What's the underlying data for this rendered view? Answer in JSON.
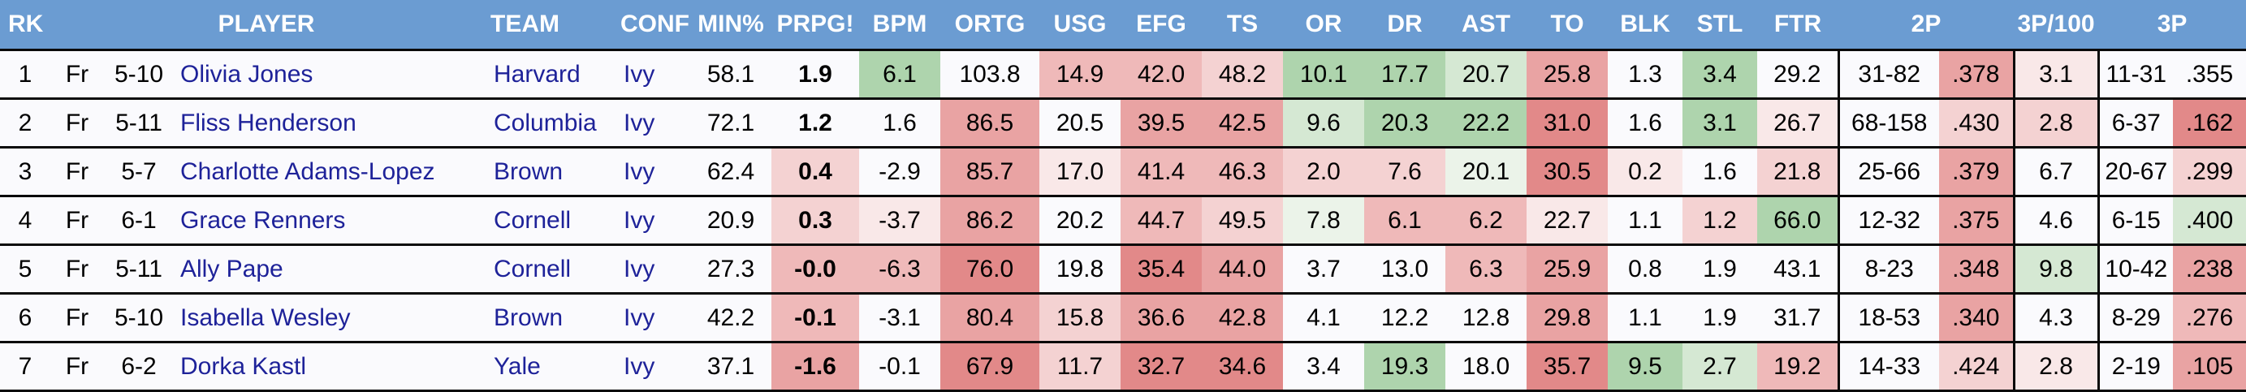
{
  "table": {
    "header": [
      {
        "label": "RK"
      },
      {
        "label": "PLAYER"
      },
      {
        "label": "TEAM"
      },
      {
        "label": "CONF"
      },
      {
        "label": "MIN%"
      },
      {
        "label": "PRPG!"
      },
      {
        "label": "BPM"
      },
      {
        "label": "ORTG"
      },
      {
        "label": "USG"
      },
      {
        "label": "EFG"
      },
      {
        "label": "TS"
      },
      {
        "label": "OR"
      },
      {
        "label": "DR"
      },
      {
        "label": "AST"
      },
      {
        "label": "TO"
      },
      {
        "label": "BLK"
      },
      {
        "label": "STL"
      },
      {
        "label": "FTR"
      },
      {
        "label": "2P"
      },
      {
        "label": "3P/100"
      },
      {
        "label": "3P"
      }
    ],
    "col_names": [
      "cell-rank",
      "cell-class-year",
      "cell-height",
      "cell-player-name",
      "cell-team",
      "cell-conf",
      "cell-min-pct",
      "cell-prpg",
      "cell-bpm",
      "cell-ortg",
      "cell-usg",
      "cell-efg",
      "cell-ts",
      "cell-or",
      "cell-dr",
      "cell-ast",
      "cell-to",
      "cell-blk",
      "cell-stl",
      "cell-ftr",
      "cell-2p-record",
      "cell-2p-pct",
      "cell-3p-per-100",
      "cell-3p-record",
      "cell-3p-pct"
    ],
    "rows": [
      {
        "cells": [
          {
            "v": "1"
          },
          {
            "v": "Fr"
          },
          {
            "v": "5-10"
          },
          {
            "v": "Olivia Jones"
          },
          {
            "v": "Harvard"
          },
          {
            "v": "Ivy"
          },
          {
            "v": "58.1"
          },
          {
            "v": "1.9"
          },
          {
            "v": "6.1",
            "c": "g2"
          },
          {
            "v": "103.8"
          },
          {
            "v": "14.9",
            "c": "r2"
          },
          {
            "v": "42.0",
            "c": "r2"
          },
          {
            "v": "48.2",
            "c": "r1"
          },
          {
            "v": "10.1",
            "c": "g2"
          },
          {
            "v": "17.7",
            "c": "g2"
          },
          {
            "v": "20.7",
            "c": "g1"
          },
          {
            "v": "25.8",
            "c": "r3"
          },
          {
            "v": "1.3"
          },
          {
            "v": "3.4",
            "c": "g2"
          },
          {
            "v": "29.2"
          },
          {
            "v": "31-82"
          },
          {
            "v": ".378",
            "c": "r3"
          },
          {
            "v": "3.1",
            "c": "r0"
          },
          {
            "v": "11-31"
          },
          {
            "v": ".355"
          }
        ]
      },
      {
        "cells": [
          {
            "v": "2"
          },
          {
            "v": "Fr"
          },
          {
            "v": "5-11"
          },
          {
            "v": "Fliss Henderson"
          },
          {
            "v": "Columbia"
          },
          {
            "v": "Ivy"
          },
          {
            "v": "72.1"
          },
          {
            "v": "1.2"
          },
          {
            "v": "1.6"
          },
          {
            "v": "86.5",
            "c": "r3"
          },
          {
            "v": "20.5"
          },
          {
            "v": "39.5",
            "c": "r3"
          },
          {
            "v": "42.5",
            "c": "r3"
          },
          {
            "v": "9.6",
            "c": "g1"
          },
          {
            "v": "20.3",
            "c": "g2"
          },
          {
            "v": "22.2",
            "c": "g2"
          },
          {
            "v": "31.0",
            "c": "r4"
          },
          {
            "v": "1.6"
          },
          {
            "v": "3.1",
            "c": "g2"
          },
          {
            "v": "26.7",
            "c": "r0"
          },
          {
            "v": "68-158"
          },
          {
            "v": ".430",
            "c": "r1"
          },
          {
            "v": "2.8",
            "c": "r1"
          },
          {
            "v": "6-37"
          },
          {
            "v": ".162",
            "c": "r4"
          }
        ]
      },
      {
        "cells": [
          {
            "v": "3"
          },
          {
            "v": "Fr"
          },
          {
            "v": "5-7"
          },
          {
            "v": "Charlotte Adams-Lopez"
          },
          {
            "v": "Brown"
          },
          {
            "v": "Ivy"
          },
          {
            "v": "62.4"
          },
          {
            "v": "0.4",
            "c": "r1"
          },
          {
            "v": "-2.9"
          },
          {
            "v": "85.7",
            "c": "r3"
          },
          {
            "v": "17.0",
            "c": "r0"
          },
          {
            "v": "41.4",
            "c": "r2"
          },
          {
            "v": "46.3",
            "c": "r2"
          },
          {
            "v": "2.0",
            "c": "r1"
          },
          {
            "v": "7.6",
            "c": "r1"
          },
          {
            "v": "20.1",
            "c": "g0"
          },
          {
            "v": "30.5",
            "c": "r4"
          },
          {
            "v": "0.2",
            "c": "r0"
          },
          {
            "v": "1.6"
          },
          {
            "v": "21.8",
            "c": "r1"
          },
          {
            "v": "25-66"
          },
          {
            "v": ".379",
            "c": "r3"
          },
          {
            "v": "6.7"
          },
          {
            "v": "20-67"
          },
          {
            "v": ".299",
            "c": "r1"
          }
        ]
      },
      {
        "cells": [
          {
            "v": "4"
          },
          {
            "v": "Fr"
          },
          {
            "v": "6-1"
          },
          {
            "v": "Grace Renners"
          },
          {
            "v": "Cornell"
          },
          {
            "v": "Ivy"
          },
          {
            "v": "20.9"
          },
          {
            "v": "0.3",
            "c": "r1"
          },
          {
            "v": "-3.7",
            "c": "r0"
          },
          {
            "v": "86.2",
            "c": "r3"
          },
          {
            "v": "20.2"
          },
          {
            "v": "44.7",
            "c": "r2"
          },
          {
            "v": "49.5",
            "c": "r1"
          },
          {
            "v": "7.8",
            "c": "g0"
          },
          {
            "v": "6.1",
            "c": "r2"
          },
          {
            "v": "6.2",
            "c": "r2"
          },
          {
            "v": "22.7",
            "c": "r0"
          },
          {
            "v": "1.1"
          },
          {
            "v": "1.2",
            "c": "r1"
          },
          {
            "v": "66.0",
            "c": "g2"
          },
          {
            "v": "12-32"
          },
          {
            "v": ".375",
            "c": "r3"
          },
          {
            "v": "4.6"
          },
          {
            "v": "6-15"
          },
          {
            "v": ".400",
            "c": "g1"
          }
        ]
      },
      {
        "cells": [
          {
            "v": "5"
          },
          {
            "v": "Fr"
          },
          {
            "v": "5-11"
          },
          {
            "v": "Ally Pape"
          },
          {
            "v": "Cornell"
          },
          {
            "v": "Ivy"
          },
          {
            "v": "27.3"
          },
          {
            "v": "-0.0",
            "c": "r2"
          },
          {
            "v": "-6.3",
            "c": "r2"
          },
          {
            "v": "76.0",
            "c": "r4"
          },
          {
            "v": "19.8"
          },
          {
            "v": "35.4",
            "c": "r4"
          },
          {
            "v": "44.0",
            "c": "r3"
          },
          {
            "v": "3.7"
          },
          {
            "v": "13.0"
          },
          {
            "v": "6.3",
            "c": "r2"
          },
          {
            "v": "25.9",
            "c": "r3"
          },
          {
            "v": "0.8"
          },
          {
            "v": "1.9"
          },
          {
            "v": "43.1"
          },
          {
            "v": "8-23"
          },
          {
            "v": ".348",
            "c": "r3"
          },
          {
            "v": "9.8",
            "c": "g1"
          },
          {
            "v": "10-42"
          },
          {
            "v": ".238",
            "c": "r3"
          }
        ]
      },
      {
        "cells": [
          {
            "v": "6"
          },
          {
            "v": "Fr"
          },
          {
            "v": "5-10"
          },
          {
            "v": "Isabella Wesley"
          },
          {
            "v": "Brown"
          },
          {
            "v": "Ivy"
          },
          {
            "v": "42.2"
          },
          {
            "v": "-0.1",
            "c": "r2"
          },
          {
            "v": "-3.1"
          },
          {
            "v": "80.4",
            "c": "r3"
          },
          {
            "v": "15.8",
            "c": "r1"
          },
          {
            "v": "36.6",
            "c": "r3"
          },
          {
            "v": "42.8",
            "c": "r3"
          },
          {
            "v": "4.1"
          },
          {
            "v": "12.2"
          },
          {
            "v": "12.8"
          },
          {
            "v": "29.8",
            "c": "r3"
          },
          {
            "v": "1.1"
          },
          {
            "v": "1.9"
          },
          {
            "v": "31.7"
          },
          {
            "v": "18-53"
          },
          {
            "v": ".340",
            "c": "r3"
          },
          {
            "v": "4.3"
          },
          {
            "v": "8-29"
          },
          {
            "v": ".276",
            "c": "r2"
          }
        ]
      },
      {
        "cells": [
          {
            "v": "7"
          },
          {
            "v": "Fr"
          },
          {
            "v": "6-2"
          },
          {
            "v": "Dorka Kastl"
          },
          {
            "v": "Yale"
          },
          {
            "v": "Ivy"
          },
          {
            "v": "37.1"
          },
          {
            "v": "-1.6",
            "c": "r3"
          },
          {
            "v": "-0.1"
          },
          {
            "v": "67.9",
            "c": "r4"
          },
          {
            "v": "11.7",
            "c": "r1"
          },
          {
            "v": "32.7",
            "c": "r4"
          },
          {
            "v": "34.6",
            "c": "r4"
          },
          {
            "v": "3.4"
          },
          {
            "v": "19.3",
            "c": "g2"
          },
          {
            "v": "18.0"
          },
          {
            "v": "35.7",
            "c": "r4"
          },
          {
            "v": "9.5",
            "c": "g2"
          },
          {
            "v": "2.7",
            "c": "g1"
          },
          {
            "v": "19.2",
            "c": "r2"
          },
          {
            "v": "14-33"
          },
          {
            "v": ".424",
            "c": "r1"
          },
          {
            "v": "2.8",
            "c": "r0"
          },
          {
            "v": "2-19"
          },
          {
            "v": ".105",
            "c": "r3"
          }
        ]
      }
    ]
  },
  "colors": {
    "header_bg": "#6b9cd2",
    "header_text": "#ffffff",
    "row_bg": "#fafafd",
    "link_text": "#1e2299",
    "body_text": "#000000",
    "grid_line": "#0a0a0a",
    "scale": {
      "g2": "#aed4ad",
      "g1": "#d5e8d3",
      "g0": "#ebf3e9",
      "r0": "#f9e8e8",
      "r1": "#f4d2d2",
      "r2": "#efb9b9",
      "r3": "#e9a3a3",
      "r4": "#e28989"
    }
  }
}
